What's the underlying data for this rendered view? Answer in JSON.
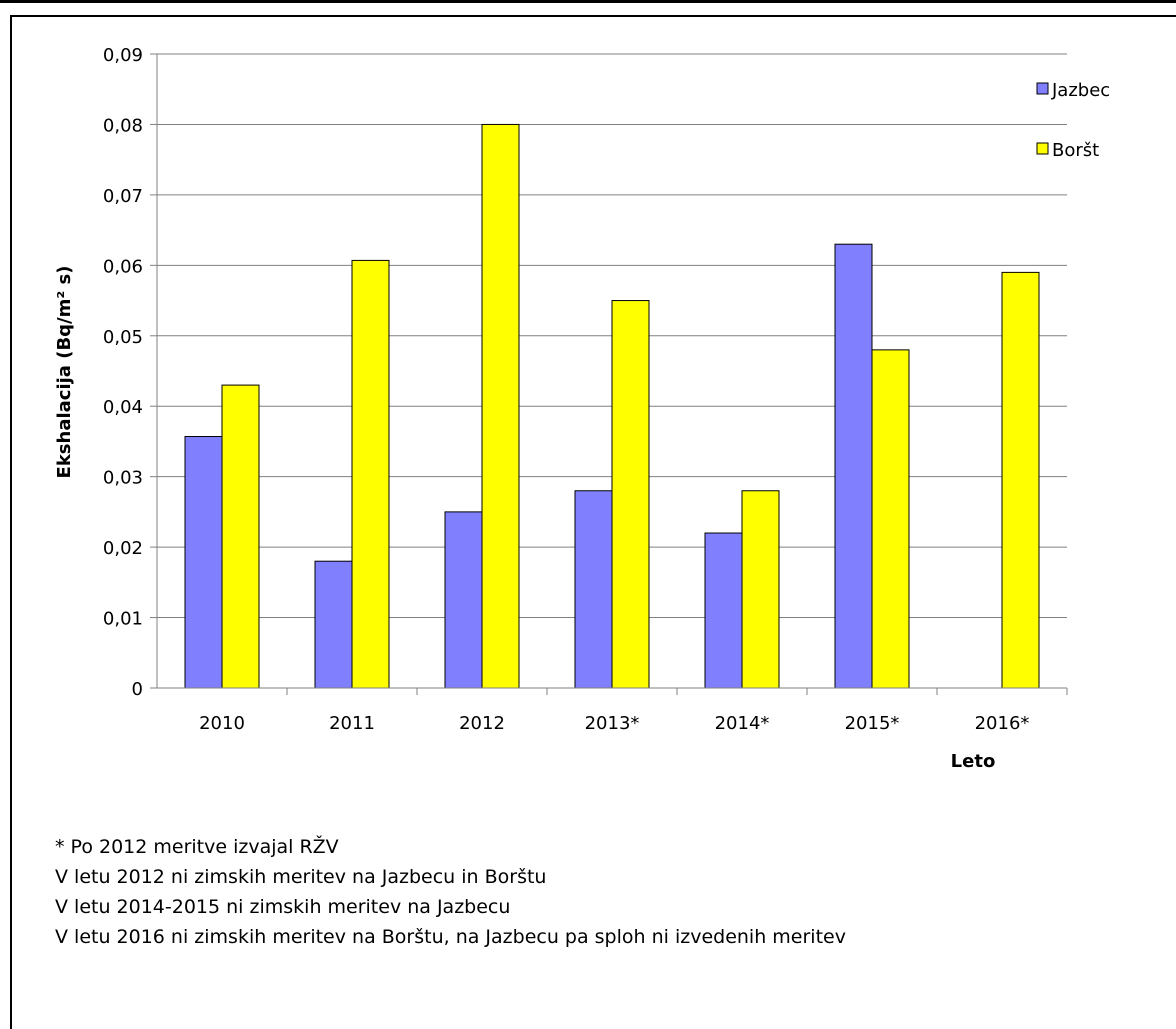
{
  "chart_data": {
    "type": "bar",
    "categories": [
      "2010",
      "2011",
      "2012",
      "2013*",
      "2014*",
      "2015*",
      "2016*"
    ],
    "series": [
      {
        "name": "Jazbec",
        "color": "#8080ff",
        "values": [
          0.0357,
          0.018,
          0.025,
          0.028,
          0.022,
          0.063,
          null
        ]
      },
      {
        "name": "Boršt",
        "color": "#ffff00",
        "values": [
          0.043,
          0.0607,
          0.08,
          0.055,
          0.028,
          0.048,
          0.059
        ]
      }
    ],
    "xlabel": "Leto",
    "ylabel": "Ekshalacija (Bq/m² s)",
    "ylim": [
      0,
      0.09
    ],
    "yticks": [
      "0",
      "0,01",
      "0,02",
      "0,03",
      "0,04",
      "0,05",
      "0,06",
      "0,07",
      "0,08",
      "0,09"
    ],
    "grid": true,
    "legend": "top-right"
  },
  "notes": [
    "* Po 2012 meritve izvajal RŽV",
    "V letu 2012 ni zimskih meritev na Jazbecu in Borštu",
    "V letu 2014-2015 ni zimskih meritev na Jazbecu",
    "V letu 2016 ni zimskih meritev na Borštu, na Jazbecu pa sploh ni izvedenih meritev"
  ]
}
